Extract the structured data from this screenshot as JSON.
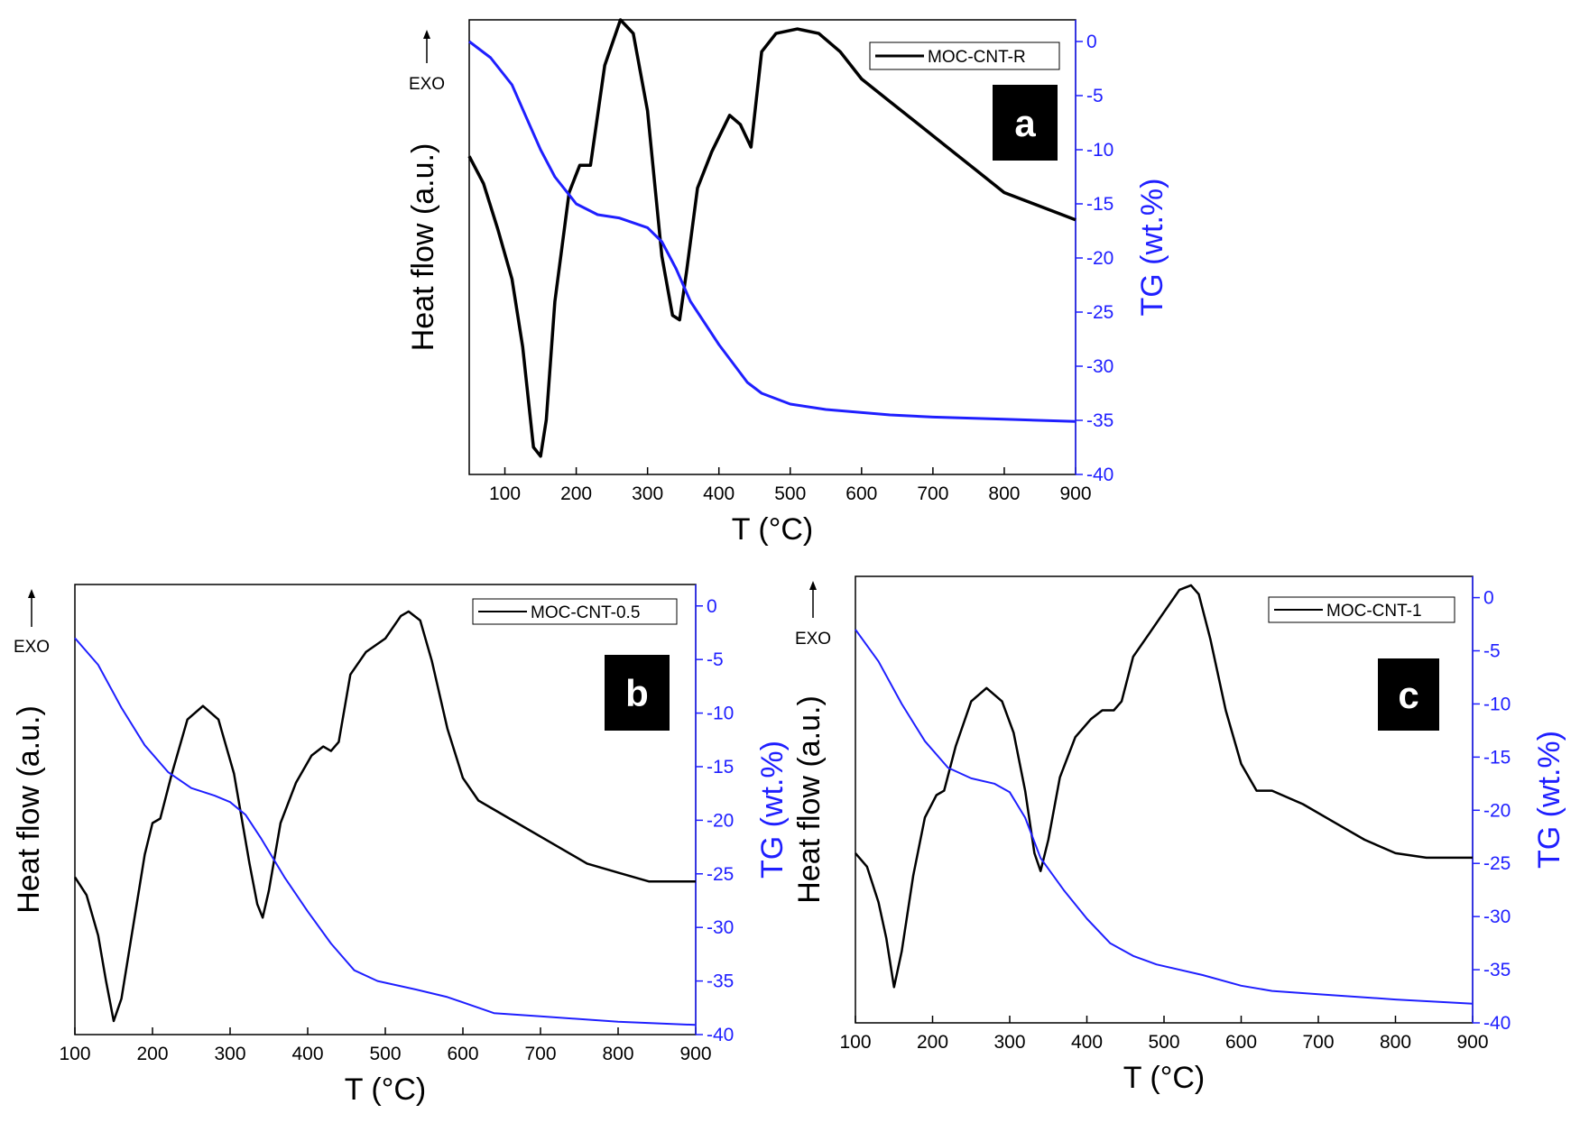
{
  "figure": {
    "exo_label": "EXO"
  },
  "chart_data": [
    {
      "type": "line",
      "panel_label": "a",
      "legend": [
        "MOC-CNT-R"
      ],
      "xlabel": "T (°C)",
      "ylabel_left": "Heat flow (a.u.)",
      "ylabel_right": "TG (wt.%)",
      "xlim": [
        50,
        900
      ],
      "ylim_right": [
        -40,
        2
      ],
      "x_ticks": [
        100,
        200,
        300,
        400,
        500,
        600,
        700,
        800,
        900
      ],
      "y_right_ticks": [
        0,
        -5,
        -10,
        -15,
        -20,
        -25,
        -30,
        -35,
        -40
      ],
      "heat_flow_units": "arbitrary (0 = plot bottom, 100 = plot top)",
      "series": [
        {
          "name": "Heat flow",
          "axis": "left",
          "color": "#000000",
          "x": [
            50,
            70,
            90,
            110,
            125,
            140,
            150,
            158,
            170,
            190,
            205,
            220,
            240,
            262,
            280,
            300,
            320,
            335,
            345,
            355,
            370,
            390,
            415,
            430,
            445,
            460,
            480,
            510,
            540,
            570,
            600,
            640,
            680,
            720,
            760,
            800,
            850,
            900
          ],
          "y": [
            70,
            64,
            54,
            43,
            28,
            6,
            4,
            12,
            38,
            62,
            68,
            68,
            90,
            100,
            97,
            80,
            48,
            35,
            34,
            45,
            63,
            71,
            79,
            77,
            72,
            93,
            97,
            98,
            97,
            93,
            87,
            82,
            77,
            72,
            67,
            62,
            59,
            56
          ]
        },
        {
          "name": "TG",
          "axis": "right",
          "color": "#1f1fff",
          "x": [
            50,
            80,
            110,
            130,
            150,
            170,
            200,
            230,
            260,
            300,
            320,
            340,
            360,
            400,
            440,
            460,
            500,
            550,
            640,
            700,
            800,
            900
          ],
          "y": [
            0,
            -1.5,
            -4,
            -7,
            -10,
            -12.5,
            -15,
            -16,
            -16.3,
            -17.2,
            -18.5,
            -21,
            -24,
            -28,
            -31.5,
            -32.5,
            -33.5,
            -34,
            -34.5,
            -34.7,
            -34.9,
            -35.1
          ]
        }
      ]
    },
    {
      "type": "line",
      "panel_label": "b",
      "legend": [
        "MOC-CNT-0.5"
      ],
      "xlabel": "T (°C)",
      "ylabel_left": "Heat flow (a.u.)",
      "ylabel_right": "TG (wt.%)",
      "xlim": [
        100,
        900
      ],
      "ylim_right": [
        -40,
        2
      ],
      "x_ticks": [
        100,
        200,
        300,
        400,
        500,
        600,
        700,
        800,
        900
      ],
      "y_right_ticks": [
        0,
        -5,
        -10,
        -15,
        -20,
        -25,
        -30,
        -35,
        -40
      ],
      "heat_flow_units": "arbitrary (0 = plot bottom, 100 = plot top)",
      "series": [
        {
          "name": "Heat flow",
          "axis": "left",
          "color": "#000000",
          "x": [
            100,
            115,
            130,
            140,
            150,
            160,
            175,
            190,
            200,
            210,
            225,
            245,
            265,
            285,
            305,
            325,
            335,
            342,
            350,
            365,
            385,
            405,
            420,
            430,
            440,
            455,
            475,
            500,
            520,
            530,
            545,
            560,
            580,
            600,
            620,
            640,
            680,
            720,
            760,
            800,
            840,
            880,
            900
          ],
          "y": [
            35,
            31,
            22,
            12,
            3,
            8,
            24,
            40,
            47,
            48,
            58,
            70,
            73,
            70,
            58,
            38,
            29,
            26,
            32,
            47,
            56,
            62,
            64,
            63,
            65,
            80,
            85,
            88,
            93,
            94,
            92,
            83,
            68,
            57,
            52,
            50,
            46,
            42,
            38,
            36,
            34,
            34,
            34
          ]
        },
        {
          "name": "TG",
          "axis": "right",
          "color": "#1f1fff",
          "x": [
            100,
            130,
            160,
            190,
            220,
            250,
            280,
            300,
            320,
            340,
            370,
            400,
            430,
            460,
            490,
            540,
            580,
            640,
            700,
            800,
            900
          ],
          "y": [
            -3,
            -5.5,
            -9.5,
            -13,
            -15.5,
            -17,
            -17.7,
            -18.3,
            -19.5,
            -21.7,
            -25.3,
            -28.5,
            -31.5,
            -34,
            -35,
            -35.8,
            -36.5,
            -38,
            -38.3,
            -38.8,
            -39.1
          ]
        }
      ]
    },
    {
      "type": "line",
      "panel_label": "c",
      "legend": [
        "MOC-CNT-1"
      ],
      "xlabel": "T (°C)",
      "ylabel_left": "Heat flow (a.u.)",
      "ylabel_right": "TG (wt.%)",
      "xlim": [
        100,
        900
      ],
      "ylim_right": [
        -40,
        2
      ],
      "x_ticks": [
        100,
        200,
        300,
        400,
        500,
        600,
        700,
        800,
        900
      ],
      "y_right_ticks": [
        0,
        -5,
        -10,
        -15,
        -20,
        -25,
        -30,
        -35,
        -40
      ],
      "heat_flow_units": "arbitrary (0 = plot bottom, 100 = plot top)",
      "series": [
        {
          "name": "Heat flow",
          "axis": "left",
          "color": "#000000",
          "x": [
            100,
            115,
            130,
            140,
            150,
            160,
            175,
            190,
            205,
            215,
            230,
            250,
            270,
            290,
            305,
            320,
            332,
            340,
            350,
            365,
            385,
            405,
            420,
            435,
            445,
            460,
            480,
            500,
            520,
            535,
            545,
            560,
            580,
            600,
            620,
            640,
            680,
            720,
            760,
            800,
            840,
            880,
            900
          ],
          "y": [
            38,
            35,
            27,
            19,
            8,
            16,
            33,
            46,
            51,
            52,
            62,
            72,
            75,
            72,
            65,
            52,
            38,
            34,
            41,
            55,
            64,
            68,
            70,
            70,
            72,
            82,
            87,
            92,
            97,
            98,
            96,
            86,
            70,
            58,
            52,
            52,
            49,
            45,
            41,
            38,
            37,
            37,
            37
          ]
        },
        {
          "name": "TG",
          "axis": "right",
          "color": "#1f1fff",
          "x": [
            100,
            130,
            160,
            190,
            220,
            250,
            280,
            300,
            320,
            340,
            370,
            400,
            430,
            460,
            490,
            550,
            600,
            640,
            700,
            800,
            900
          ],
          "y": [
            -3,
            -6,
            -10,
            -13.5,
            -16,
            -17,
            -17.5,
            -18.3,
            -20.7,
            -24.5,
            -27.5,
            -30.2,
            -32.5,
            -33.7,
            -34.5,
            -35.5,
            -36.5,
            -37,
            -37.3,
            -37.8,
            -38.2
          ]
        }
      ]
    }
  ]
}
